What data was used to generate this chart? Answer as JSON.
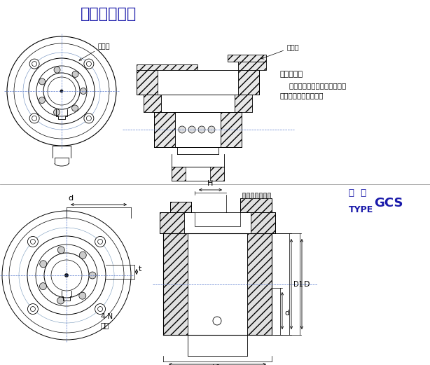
{
  "title_top": "安装参考范例",
  "title_color": "#1a1aaa",
  "title_fontsize": 16,
  "label_from_driven": "从动侧",
  "label_driven": "主动侧",
  "install_req_title": "安装要求：",
  "install_req_line1": "    安装时主动侧必需附加轴承支",
  "install_req_line2": "撑来保证内外环间隙。",
  "type_label": "型  号",
  "type_value": "GCS",
  "type_eng": "TYPE",
  "bg_color": "#ffffff",
  "line_color": "#000000",
  "blue_color": "#1a1aaa",
  "hatch_color": "#555555",
  "dim_color": "#000000"
}
